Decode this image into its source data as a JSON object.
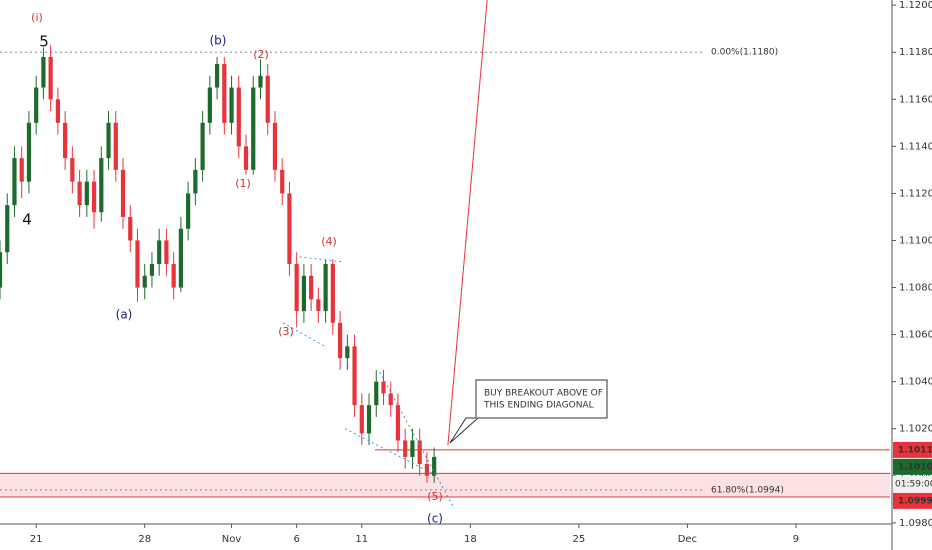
{
  "chart_data": {
    "type": "candlestick",
    "x": [
      -5,
      -4,
      -3,
      -2,
      -1,
      0,
      1,
      2,
      3,
      4,
      5,
      6,
      7,
      8,
      9,
      10,
      11,
      12,
      13,
      14,
      15,
      16,
      17,
      18,
      19,
      20,
      21,
      22,
      23,
      24,
      25,
      26,
      27,
      28,
      29,
      30,
      31,
      32,
      33,
      34,
      35,
      36,
      37,
      38,
      39,
      40,
      41,
      42,
      43,
      44,
      45,
      46,
      47,
      48,
      49,
      50,
      51,
      52,
      53,
      54,
      55
    ],
    "open": [
      1.108,
      1.1095,
      1.1115,
      1.1135,
      1.1125,
      1.115,
      1.1165,
      1.1178,
      1.116,
      1.115,
      1.1135,
      1.1125,
      1.1115,
      1.1125,
      1.1112,
      1.1135,
      1.115,
      1.113,
      1.111,
      1.11,
      1.108,
      1.1085,
      1.109,
      1.11,
      1.109,
      1.108,
      1.1105,
      1.112,
      1.113,
      1.115,
      1.1165,
      1.1175,
      1.115,
      1.1165,
      1.114,
      1.113,
      1.1165,
      1.117,
      1.115,
      1.113,
      1.112,
      1.109,
      1.107,
      1.1085,
      1.1075,
      1.107,
      1.109,
      1.1065,
      1.105,
      1.1055,
      1.103,
      1.1018,
      1.103,
      1.104,
      1.1035,
      1.103,
      1.1015,
      1.1008,
      1.1015,
      1.1005,
      1.1
    ],
    "high": [
      1.11,
      1.112,
      1.114,
      1.114,
      1.1155,
      1.117,
      1.1182,
      1.1183,
      1.1165,
      1.1155,
      1.114,
      1.113,
      1.113,
      1.113,
      1.114,
      1.1155,
      1.1155,
      1.1135,
      1.1115,
      1.1105,
      1.109,
      1.1095,
      1.1105,
      1.1105,
      1.1095,
      1.111,
      1.1125,
      1.1135,
      1.1155,
      1.117,
      1.1178,
      1.1178,
      1.117,
      1.117,
      1.1145,
      1.117,
      1.1177,
      1.1175,
      1.1155,
      1.1135,
      1.1125,
      1.1095,
      1.109,
      1.109,
      1.108,
      1.1092,
      1.1092,
      1.107,
      1.106,
      1.106,
      1.1035,
      1.1035,
      1.1045,
      1.1045,
      1.104,
      1.1035,
      1.102,
      1.102,
      1.102,
      1.101,
      1.1012
    ],
    "low": [
      1.1075,
      1.109,
      1.111,
      1.1118,
      1.112,
      1.1145,
      1.116,
      1.1155,
      1.1145,
      1.113,
      1.112,
      1.111,
      1.111,
      1.1105,
      1.1108,
      1.113,
      1.1125,
      1.1105,
      1.1095,
      1.1074,
      1.1075,
      1.108,
      1.1085,
      1.1085,
      1.1075,
      1.1078,
      1.11,
      1.1115,
      1.1125,
      1.1145,
      1.116,
      1.1145,
      1.1145,
      1.1135,
      1.1128,
      1.1128,
      1.116,
      1.1145,
      1.1125,
      1.1115,
      1.1085,
      1.1063,
      1.1065,
      1.107,
      1.1065,
      1.1065,
      1.106,
      1.1045,
      1.1045,
      1.1025,
      1.1013,
      1.1013,
      1.1025,
      1.103,
      1.1025,
      1.101,
      1.1003,
      1.1003,
      1.1,
      1.0997,
      1.0997
    ],
    "close": [
      1.1095,
      1.1115,
      1.1135,
      1.1125,
      1.115,
      1.1165,
      1.1178,
      1.116,
      1.115,
      1.1135,
      1.1125,
      1.1115,
      1.1125,
      1.1112,
      1.1135,
      1.115,
      1.113,
      1.111,
      1.11,
      1.108,
      1.1085,
      1.109,
      1.11,
      1.109,
      1.108,
      1.1105,
      1.112,
      1.113,
      1.115,
      1.1165,
      1.1175,
      1.115,
      1.1165,
      1.114,
      1.113,
      1.1165,
      1.117,
      1.115,
      1.113,
      1.112,
      1.109,
      1.107,
      1.1085,
      1.1075,
      1.107,
      1.109,
      1.1065,
      1.105,
      1.1055,
      1.103,
      1.1018,
      1.103,
      1.104,
      1.1035,
      1.103,
      1.1015,
      1.1008,
      1.1015,
      1.1005,
      1.1,
      1.1008
    ],
    "up_color": "#1d6b2c",
    "down_color": "#e8333a",
    "xlim": [
      -5,
      118
    ],
    "xticks": [
      {
        "value": 0,
        "label": "21"
      },
      {
        "value": 15,
        "label": "28"
      },
      {
        "value": 27,
        "label": "Nov"
      },
      {
        "value": 36,
        "label": "6"
      },
      {
        "value": 45,
        "label": "11"
      },
      {
        "value": 60,
        "label": "18"
      },
      {
        "value": 75,
        "label": "25"
      },
      {
        "value": 90,
        "label": "Dec"
      },
      {
        "value": 105,
        "label": "9"
      }
    ],
    "ylim": [
      1.09795,
      1.12022
    ],
    "yticks": [
      {
        "value": 1.098,
        "label": "1.0980"
      },
      {
        "value": 1.1,
        "label": "1.1000"
      },
      {
        "value": 1.102,
        "label": "1.1020"
      },
      {
        "value": 1.104,
        "label": "1.1040"
      },
      {
        "value": 1.106,
        "label": "1.1060"
      },
      {
        "value": 1.108,
        "label": "1.1080"
      },
      {
        "value": 1.11,
        "label": "1.1100"
      },
      {
        "value": 1.112,
        "label": "1.1120"
      },
      {
        "value": 1.114,
        "label": "1.1140"
      },
      {
        "value": 1.116,
        "label": "1.1160"
      },
      {
        "value": 1.118,
        "label": "1.1180"
      },
      {
        "value": 1.12,
        "label": "1.1200"
      }
    ],
    "fib_levels": [
      {
        "value": 1.118,
        "label": "0.00%(1.1180)"
      },
      {
        "value": 1.0994,
        "label": "61.80%(1.0994)"
      }
    ],
    "zone": {
      "top": 1.1001,
      "bottom": 1.0991,
      "color": "#e8333a"
    },
    "breakout_level": {
      "value": 1.1011,
      "label": "1.1011",
      "color": "#e8333a"
    },
    "price_labels": [
      {
        "value": 1.1011,
        "label": "1.1011",
        "color": "#e8333a"
      },
      {
        "value": 1.101,
        "label": "1.1010",
        "color": "#1d6b2c"
      },
      {
        "value": 1.0999,
        "label": "1.0999",
        "color": "#e8333a"
      }
    ],
    "countdown": "01:59:00",
    "trendlines": [
      {
        "x": [
          36.4,
          42.2
        ],
        "y": [
          1.1093,
          1.1091
        ],
        "color": "#4a90d9",
        "dash": true
      },
      {
        "x": [
          34.1,
          39.9
        ],
        "y": [
          1.1065,
          1.1055
        ],
        "color": "#4a90d9",
        "dash": true
      },
      {
        "x": [
          47.5,
          57.8
        ],
        "y": [
          1.1044,
          1.0986
        ],
        "color": "#4a90d9",
        "dash": true
      },
      {
        "x": [
          42.7,
          54.8
        ],
        "y": [
          1.102,
          1.1001
        ],
        "color": "#4a90d9",
        "dash": true
      },
      {
        "x": [
          56.9,
          62.4
        ],
        "y": [
          1.1013,
          1.1205
        ],
        "color": "#e8333a",
        "dash": false
      }
    ],
    "annotations": [
      "(i)",
      "5",
      "4",
      "(a)",
      "(b)",
      "(2)",
      "(1)",
      "(3)",
      "(4)",
      "(5)",
      "(c)"
    ],
    "callout": [
      "BUY BREAKOUT ABOVE OF",
      "THIS ENDING DIAGONAL"
    ]
  }
}
